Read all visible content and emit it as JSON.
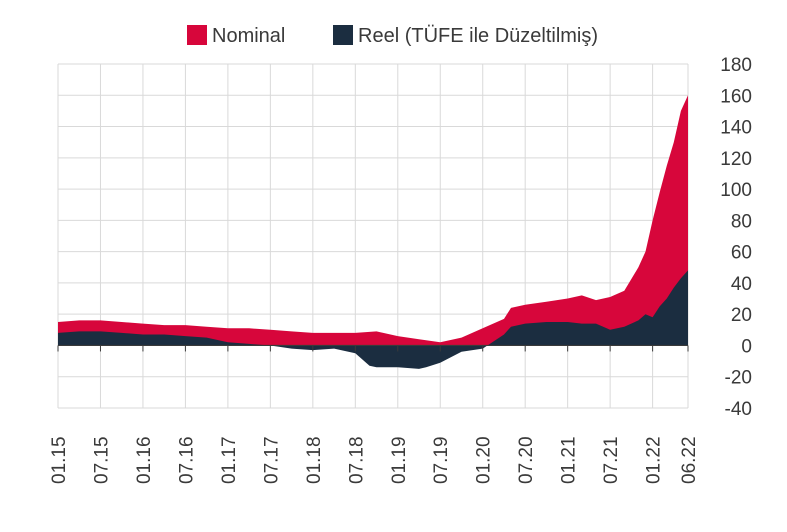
{
  "chart_data": {
    "type": "area",
    "title": "",
    "xlabel": "",
    "ylabel": "",
    "ylim": [
      -40,
      180
    ],
    "y_ticks": [
      180,
      160,
      140,
      120,
      100,
      80,
      60,
      40,
      20,
      0,
      -20,
      -40
    ],
    "x_tick_labels": [
      "01.15",
      "07.15",
      "01.16",
      "07.16",
      "01.17",
      "07.17",
      "01.18",
      "07.18",
      "01.19",
      "07.19",
      "01.20",
      "07.20",
      "01.21",
      "07.21",
      "01.22",
      "06.22"
    ],
    "grid": true,
    "legend_position": "top",
    "colors": {
      "nominal": "#d7063b",
      "reel": "#1b2d40",
      "grid": "#d9d9d9",
      "axis": "#3a3a3a"
    },
    "series": [
      {
        "name": "Nominal",
        "x": [
          "2015-01",
          "2015-04",
          "2015-07",
          "2015-10",
          "2016-01",
          "2016-04",
          "2016-07",
          "2016-10",
          "2017-01",
          "2017-04",
          "2017-07",
          "2017-10",
          "2018-01",
          "2018-04",
          "2018-07",
          "2018-10",
          "2019-01",
          "2019-04",
          "2019-07",
          "2019-10",
          "2020-01",
          "2020-04",
          "2020-05",
          "2020-07",
          "2020-10",
          "2021-01",
          "2021-03",
          "2021-05",
          "2021-07",
          "2021-09",
          "2021-11",
          "2021-12",
          "2022-01",
          "2022-02",
          "2022-03",
          "2022-04",
          "2022-05",
          "2022-06"
        ],
        "values": [
          15,
          16,
          16,
          15,
          14,
          13,
          13,
          12,
          11,
          11,
          10,
          9,
          8,
          8,
          8,
          9,
          6,
          4,
          2,
          5,
          11,
          17,
          24,
          26,
          28,
          30,
          32,
          29,
          31,
          35,
          50,
          60,
          80,
          98,
          115,
          130,
          150,
          160
        ]
      },
      {
        "name": "Reel (TÜFE ile Düzeltilmiş)",
        "x": [
          "2015-01",
          "2015-04",
          "2015-07",
          "2015-10",
          "2016-01",
          "2016-04",
          "2016-07",
          "2016-10",
          "2017-01",
          "2017-04",
          "2017-07",
          "2017-10",
          "2018-01",
          "2018-04",
          "2018-07",
          "2018-09",
          "2018-10",
          "2019-01",
          "2019-04",
          "2019-05",
          "2019-07",
          "2019-10",
          "2020-01",
          "2020-04",
          "2020-05",
          "2020-07",
          "2020-10",
          "2021-01",
          "2021-03",
          "2021-05",
          "2021-07",
          "2021-09",
          "2021-11",
          "2021-12",
          "2022-01",
          "2022-02",
          "2022-03",
          "2022-04",
          "2022-05",
          "2022-06"
        ],
        "values": [
          8,
          9,
          9,
          8,
          7,
          7,
          6,
          5,
          2,
          1,
          0,
          -2,
          -3,
          -2,
          -5,
          -13,
          -14,
          -14,
          -15,
          -14,
          -11,
          -4,
          -2,
          7,
          12,
          14,
          15,
          15,
          14,
          14,
          10,
          12,
          16,
          20,
          18,
          25,
          30,
          37,
          43,
          48
        ]
      }
    ]
  }
}
